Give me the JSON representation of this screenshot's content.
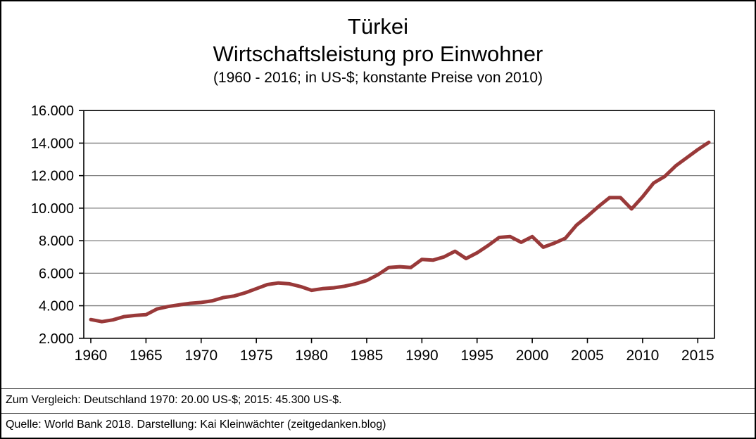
{
  "header": {
    "title": "Türkei",
    "subtitle": "Wirtschaftsleistung pro Einwohner",
    "caption": "(1960 - 2016; in US-$; konstante Preise von 2010)"
  },
  "chart_data": {
    "type": "line",
    "title": "Türkei",
    "subtitle": "Wirtschaftsleistung pro Einwohner",
    "caption": "(1960 - 2016; in US-$; konstante Preise von 2010)",
    "unit": "US-$, konstante Preise von 2010",
    "x": [
      1960,
      1961,
      1962,
      1963,
      1964,
      1965,
      1966,
      1967,
      1968,
      1969,
      1970,
      1971,
      1972,
      1973,
      1974,
      1975,
      1976,
      1977,
      1978,
      1979,
      1980,
      1981,
      1982,
      1983,
      1984,
      1985,
      1986,
      1987,
      1988,
      1989,
      1990,
      1991,
      1992,
      1993,
      1994,
      1995,
      1996,
      1997,
      1998,
      1999,
      2000,
      2001,
      2002,
      2003,
      2004,
      2005,
      2006,
      2007,
      2008,
      2009,
      2010,
      2011,
      2012,
      2013,
      2014,
      2015,
      2016
    ],
    "values": [
      3150,
      3020,
      3130,
      3330,
      3400,
      3450,
      3800,
      3950,
      4050,
      4150,
      4200,
      4300,
      4500,
      4600,
      4800,
      5050,
      5300,
      5400,
      5350,
      5180,
      4950,
      5050,
      5100,
      5200,
      5350,
      5550,
      5900,
      6350,
      6400,
      6350,
      6850,
      6800,
      7000,
      7350,
      6900,
      7250,
      7700,
      8200,
      8250,
      7900,
      8250,
      7600,
      7850,
      8150,
      8950,
      9500,
      10100,
      10650,
      10650,
      9950,
      10700,
      11550,
      11950,
      12600,
      13100,
      13600,
      14050
    ],
    "ylim": [
      2000,
      16000
    ],
    "ytick_step": 2000,
    "ytick_labels": [
      "16.000",
      "14.000",
      "12.000",
      "10.000",
      "8.000",
      "6.000",
      "4.000",
      "2.000"
    ],
    "xtick_labels": [
      "1960",
      "1965",
      "1970",
      "1975",
      "1980",
      "1985",
      "1990",
      "1995",
      "2000",
      "2005",
      "2010",
      "2015"
    ],
    "grid": "horizontal",
    "legend_position": "none",
    "line_color": "#993939",
    "grid_color": "#7f7f7f",
    "axis_color": "#000000"
  },
  "footer": {
    "comparison": "Zum Vergleich: Deutschland 1970: 20.00 US-$; 2015: 45.300 US-$.",
    "source": "Quelle: World Bank 2018. Darstellung: Kai Kleinwächter (zeitgedanken.blog)"
  }
}
